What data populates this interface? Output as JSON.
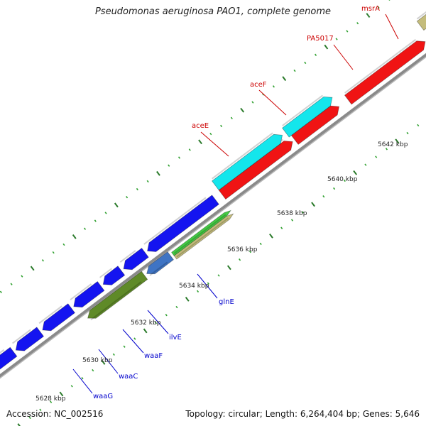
{
  "header": {
    "title": "Pseudomonas aeruginosa PAO1, complete genome"
  },
  "footer": {
    "accession": "Accession: NC_002516",
    "summary": "Topology: circular; Length: 6,264,404 bp; Genes: 5,646"
  },
  "colors": {
    "backbone": "#8a8a8a",
    "tick_major": "#2a7a2a",
    "tick_minor": "#2fa02f",
    "blue_gene": "#1414f0",
    "cyan_gene": "#14e6ec",
    "red_gene": "#f01414",
    "dark_olive": "#5f8a28",
    "green_gene": "#44cc44",
    "tan_gene": "#c4bc7c",
    "steel_gene": "#3f74c4",
    "label_forward": "#cc0000",
    "label_reverse": "#0000cc"
  },
  "axis": {
    "unit": "kbp",
    "tick_labels": [
      "5628 kbp",
      "5630 kbp",
      "5632 kbp",
      "5634 kbp",
      "5636 kbp",
      "5638 kbp",
      "5640 kbp",
      "5642 kbp"
    ]
  },
  "gene_labels": {
    "forward": [
      "aceE",
      "aceF",
      "PA5017",
      "msrA"
    ],
    "reverse": [
      "glnE",
      "ilvE",
      "waaF",
      "waaC",
      "waaG"
    ]
  }
}
